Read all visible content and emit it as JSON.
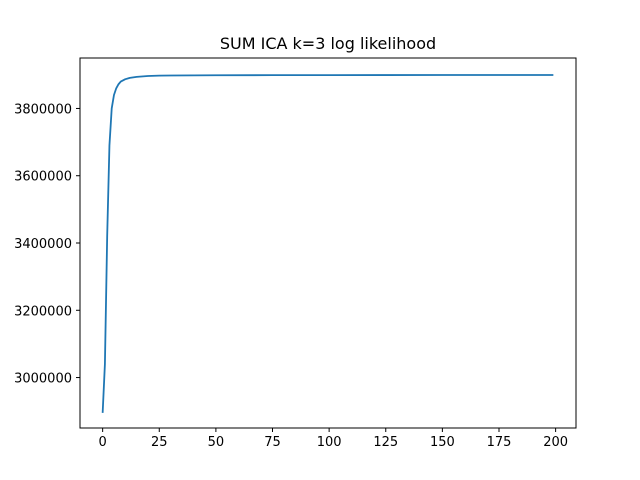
{
  "chart_data": {
    "type": "line",
    "title": "SUM ICA k=3 log likelihood",
    "xlabel": "",
    "ylabel": "",
    "xlim": [
      -10,
      209
    ],
    "ylim": [
      2850000,
      3950000
    ],
    "grid": false,
    "x_ticks": [
      0,
      25,
      50,
      75,
      100,
      125,
      150,
      175,
      200
    ],
    "y_ticks": [
      3000000,
      3200000,
      3400000,
      3600000,
      3800000
    ],
    "x_tick_labels": [
      "0",
      "25",
      "50",
      "75",
      "100",
      "125",
      "150",
      "175",
      "200"
    ],
    "y_tick_labels": [
      "3000000",
      "3200000",
      "3400000",
      "3600000",
      "3800000"
    ],
    "series": [
      {
        "color": "#1f77b4",
        "x": [
          0,
          1,
          2,
          3,
          4,
          5,
          6,
          7,
          8,
          10,
          12,
          15,
          20,
          25,
          30,
          40,
          50,
          75,
          100,
          125,
          150,
          175,
          199
        ],
        "y": [
          2895000,
          3040000,
          3420000,
          3690000,
          3800000,
          3840000,
          3860000,
          3872000,
          3880000,
          3887000,
          3891000,
          3894000,
          3896500,
          3897500,
          3898000,
          3898400,
          3898700,
          3899000,
          3899200,
          3899300,
          3899400,
          3899450,
          3899500
        ]
      }
    ]
  }
}
